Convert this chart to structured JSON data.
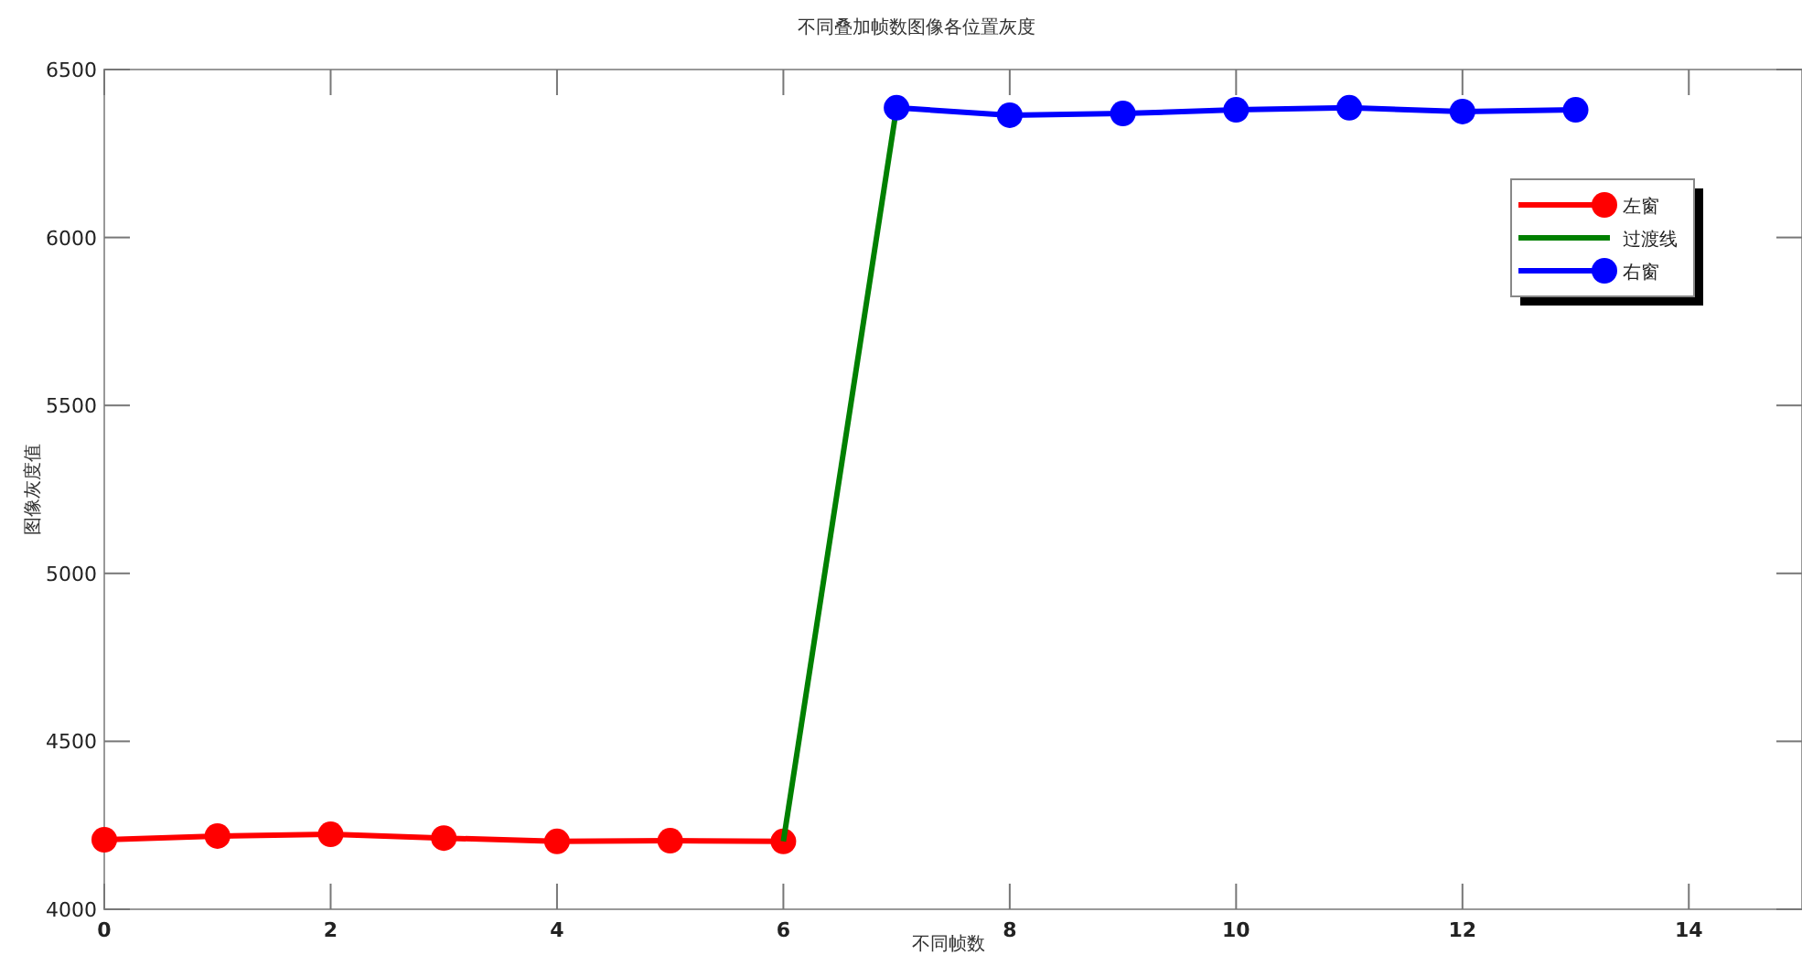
{
  "chart_data": {
    "type": "line",
    "title": "不同叠加帧数图像各位置灰度",
    "xlabel": "不同帧数",
    "ylabel": "图像灰度值",
    "xlim": [
      0,
      15
    ],
    "xticks": [
      0,
      2,
      4,
      6,
      8,
      10,
      12,
      14
    ],
    "ylim": [
      4000,
      6500
    ],
    "yticks": [
      4000,
      4500,
      5000,
      5500,
      6000,
      6500
    ],
    "grid": false,
    "legend": "top right",
    "marker": "circle",
    "line_style": "solid",
    "series": [
      {
        "name": "左窗",
        "color": "#ff0000",
        "x": [
          0,
          1,
          2,
          3,
          4,
          5,
          6
        ],
        "values": [
          4207,
          4218,
          4223,
          4212,
          4202,
          4204,
          4202
        ]
      },
      {
        "name": "过渡线",
        "color": "#008000",
        "marker": "none",
        "x": [
          6,
          7
        ],
        "values": [
          4202,
          6386
        ]
      },
      {
        "name": "右窗",
        "color": "#0000ff",
        "x": [
          7,
          8,
          9,
          10,
          11,
          12,
          13
        ],
        "values": [
          6386,
          6364,
          6369,
          6380,
          6386,
          6375,
          6380
        ]
      }
    ]
  }
}
